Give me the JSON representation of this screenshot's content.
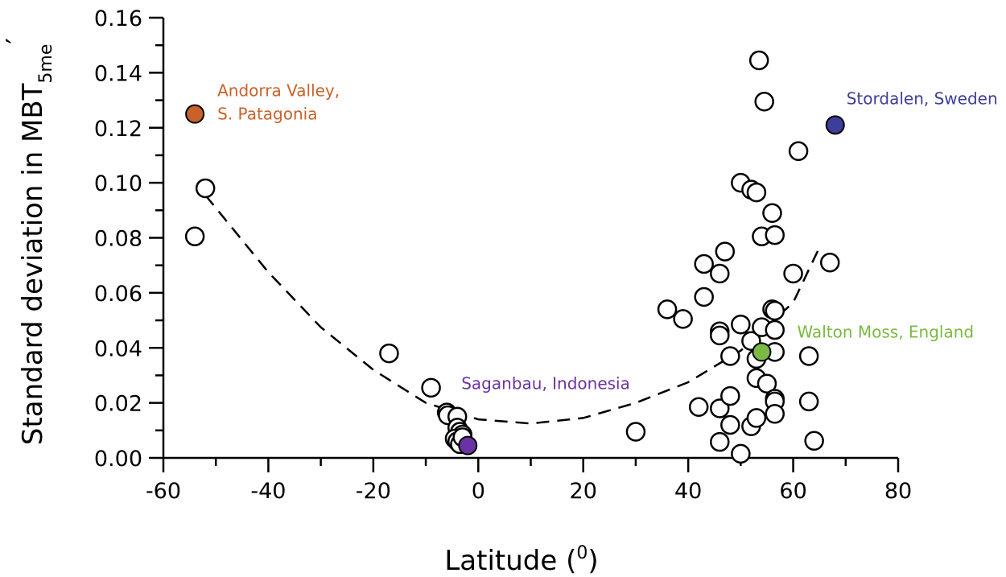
{
  "chart_data": {
    "type": "scatter",
    "title": "",
    "xlabel": "Latitude (",
    "xlabel_sup": "0",
    "xlabel_end": ")",
    "ylabel": "Standard deviation in MBT",
    "ylabel_sub": "5me",
    "ylabel_prime": "′",
    "xlim": [
      -60,
      80
    ],
    "ylim": [
      0.0,
      0.16
    ],
    "xticks": [
      -60,
      -40,
      -20,
      0,
      20,
      40,
      60,
      80
    ],
    "xtick_labels": [
      "-60",
      "-40",
      "-20",
      "0",
      "20",
      "40",
      "60",
      "80"
    ],
    "yticks": [
      0.0,
      0.02,
      0.04,
      0.06,
      0.08,
      0.1,
      0.12,
      0.14,
      0.16
    ],
    "ytick_labels": [
      "0.00",
      "0.02",
      "0.04",
      "0.06",
      "0.08",
      "0.10",
      "0.12",
      "0.14",
      "0.16"
    ],
    "grid": false,
    "points": [
      {
        "x": -52,
        "y": 0.098
      },
      {
        "x": -54,
        "y": 0.0805
      },
      {
        "x": -17,
        "y": 0.038
      },
      {
        "x": -9,
        "y": 0.0255
      },
      {
        "x": -6,
        "y": 0.0165
      },
      {
        "x": -5.8,
        "y": 0.0155
      },
      {
        "x": -4,
        "y": 0.015
      },
      {
        "x": -4,
        "y": 0.011
      },
      {
        "x": -3.5,
        "y": 0.0095
      },
      {
        "x": -3,
        "y": 0.0085
      },
      {
        "x": -4.5,
        "y": 0.007
      },
      {
        "x": -4,
        "y": 0.006
      },
      {
        "x": -3.5,
        "y": 0.005
      },
      {
        "x": -3,
        "y": 0.0075
      },
      {
        "x": 30,
        "y": 0.0095
      },
      {
        "x": 36,
        "y": 0.054
      },
      {
        "x": 39,
        "y": 0.0505
      },
      {
        "x": 42,
        "y": 0.0185
      },
      {
        "x": 43,
        "y": 0.0705
      },
      {
        "x": 43,
        "y": 0.0585
      },
      {
        "x": 46,
        "y": 0.067
      },
      {
        "x": 46,
        "y": 0.046
      },
      {
        "x": 46,
        "y": 0.0445
      },
      {
        "x": 46,
        "y": 0.018
      },
      {
        "x": 46,
        "y": 0.0058
      },
      {
        "x": 47,
        "y": 0.075
      },
      {
        "x": 48,
        "y": 0.037
      },
      {
        "x": 48,
        "y": 0.0225
      },
      {
        "x": 48,
        "y": 0.012
      },
      {
        "x": 50,
        "y": 0.1
      },
      {
        "x": 50,
        "y": 0.0485
      },
      {
        "x": 50,
        "y": 0.0015
      },
      {
        "x": 52,
        "y": 0.0975
      },
      {
        "x": 52,
        "y": 0.0425
      },
      {
        "x": 52,
        "y": 0.0115
      },
      {
        "x": 53,
        "y": 0.0965
      },
      {
        "x": 53,
        "y": 0.036
      },
      {
        "x": 53,
        "y": 0.029
      },
      {
        "x": 53,
        "y": 0.0145
      },
      {
        "x": 53.5,
        "y": 0.1445
      },
      {
        "x": 54,
        "y": 0.0805
      },
      {
        "x": 54,
        "y": 0.0475
      },
      {
        "x": 54.5,
        "y": 0.1295
      },
      {
        "x": 55,
        "y": 0.027
      },
      {
        "x": 56,
        "y": 0.089
      },
      {
        "x": 56,
        "y": 0.054
      },
      {
        "x": 56.5,
        "y": 0.081
      },
      {
        "x": 56.5,
        "y": 0.0535
      },
      {
        "x": 56.5,
        "y": 0.0465
      },
      {
        "x": 56.5,
        "y": 0.0385
      },
      {
        "x": 56.5,
        "y": 0.0215
      },
      {
        "x": 56.5,
        "y": 0.0205
      },
      {
        "x": 56.5,
        "y": 0.016
      },
      {
        "x": 60,
        "y": 0.067
      },
      {
        "x": 61,
        "y": 0.1115
      },
      {
        "x": 63,
        "y": 0.037
      },
      {
        "x": 63,
        "y": 0.0205
      },
      {
        "x": 64,
        "y": 0.0062
      },
      {
        "x": 67,
        "y": 0.071
      }
    ],
    "highlighted": [
      {
        "x": -54,
        "y": 0.125,
        "color": "#c9622a",
        "label": [
          "Andorra Valley,",
          "S. Patagonia"
        ]
      },
      {
        "x": 68,
        "y": 0.121,
        "color": "#3c3e9a",
        "label": [
          "Stordalen, Sweden"
        ]
      },
      {
        "x": 54,
        "y": 0.0385,
        "color": "#7ab942",
        "label": [
          "Walton Moss, England"
        ]
      },
      {
        "x": -2,
        "y": 0.0045,
        "color": "#6a33a3",
        "label": [
          "Saganbau, Indonesia"
        ]
      }
    ],
    "trendline": {
      "style": "dashed",
      "x": [
        -52,
        -40,
        -30,
        -20,
        -10,
        0,
        10,
        20,
        30,
        40,
        50,
        60,
        65
      ],
      "y": [
        0.0955,
        0.0675,
        0.0475,
        0.032,
        0.02,
        0.014,
        0.0125,
        0.0145,
        0.02,
        0.0275,
        0.039,
        0.0565,
        0.0765
      ]
    }
  }
}
